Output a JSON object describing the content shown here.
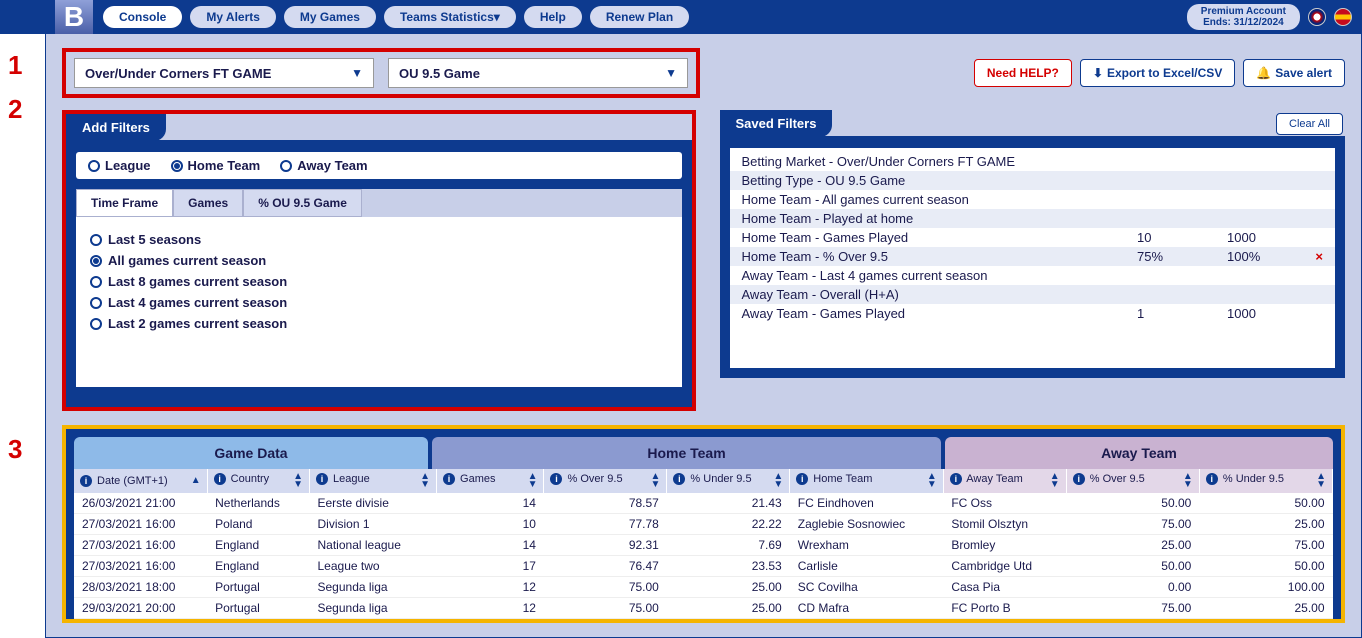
{
  "topbar": {
    "logo": "B",
    "nav": [
      "Console",
      "My Alerts",
      "My Games",
      "Teams Statistics",
      "Help",
      "Renew Plan"
    ],
    "teams_stats_caret": "▾",
    "premium_line1": "Premium Account",
    "premium_line2": "Ends: 31/12/2024"
  },
  "annotations": {
    "n1": "1",
    "n2": "2",
    "n3": "3"
  },
  "row1": {
    "dd1": "Over/Under Corners FT GAME",
    "dd2": "OU 9.5 Game",
    "help": "Need HELP?",
    "export": "Export to Excel/CSV",
    "save": "Save alert"
  },
  "addFilters": {
    "title": "Add Filters",
    "scopes": [
      "League",
      "Home Team",
      "Away Team"
    ],
    "scope_selected": 1,
    "subtabs": [
      "Time Frame",
      "Games",
      "% OU 9.5 Game"
    ],
    "subtab_active": 0,
    "options": [
      "Last 5 seasons",
      "All games current season",
      "Last 8 games current season",
      "Last 4 games current season",
      "Last 2 games current season"
    ],
    "option_selected": 1
  },
  "savedFilters": {
    "title": "Saved Filters",
    "clear": "Clear All",
    "rows": [
      {
        "label": "Betting Market - Over/Under Corners FT GAME"
      },
      {
        "label": "Betting Type - OU 9.5 Game"
      },
      {
        "label": "Home Team - All games current season"
      },
      {
        "label": "Home Team - Played at home"
      },
      {
        "label": "Home Team - Games Played",
        "c2": "10",
        "c3": "1000"
      },
      {
        "label": "Home Team - % Over 9.5",
        "c2": "75%",
        "c3": "100%",
        "del": "×"
      },
      {
        "label": "Away Team - Last 4 games current season"
      },
      {
        "label": "Away Team - Overall (H+A)"
      },
      {
        "label": "Away Team - Games Played",
        "c2": "1",
        "c3": "1000"
      }
    ]
  },
  "table": {
    "groups": [
      "Game Data",
      "Home Team",
      "Away Team"
    ],
    "cols": [
      "Date (GMT+1)",
      "Country",
      "League",
      "Games",
      "% Over 9.5",
      "% Under 9.5",
      "Home Team",
      "Away Team",
      "% Over 9.5",
      "% Under 9.5"
    ],
    "rows": [
      {
        "date": "26/03/2021 21:00",
        "country": "Netherlands",
        "league": "Eerste divisie",
        "games": "14",
        "over": "78.57",
        "under": "21.43",
        "home": "FC Eindhoven",
        "away": "FC Oss",
        "aover": "50.00",
        "aunder": "50.00"
      },
      {
        "date": "27/03/2021 16:00",
        "country": "Poland",
        "league": "Division 1",
        "games": "10",
        "over": "77.78",
        "under": "22.22",
        "home": "Zaglebie Sosnowiec",
        "away": "Stomil Olsztyn",
        "aover": "75.00",
        "aunder": "25.00"
      },
      {
        "date": "27/03/2021 16:00",
        "country": "England",
        "league": "National league",
        "games": "14",
        "over": "92.31",
        "under": "7.69",
        "home": "Wrexham",
        "away": "Bromley",
        "aover": "25.00",
        "aunder": "75.00"
      },
      {
        "date": "27/03/2021 16:00",
        "country": "England",
        "league": "League two",
        "games": "17",
        "over": "76.47",
        "under": "23.53",
        "home": "Carlisle",
        "away": "Cambridge Utd",
        "aover": "50.00",
        "aunder": "50.00"
      },
      {
        "date": "28/03/2021 18:00",
        "country": "Portugal",
        "league": "Segunda liga",
        "games": "12",
        "over": "75.00",
        "under": "25.00",
        "home": "SC Covilha",
        "away": "Casa Pia",
        "aover": "0.00",
        "aunder": "100.00"
      },
      {
        "date": "29/03/2021 20:00",
        "country": "Portugal",
        "league": "Segunda liga",
        "games": "12",
        "over": "75.00",
        "under": "25.00",
        "home": "CD Mafra",
        "away": "FC Porto B",
        "aover": "75.00",
        "aunder": "25.00"
      }
    ]
  }
}
